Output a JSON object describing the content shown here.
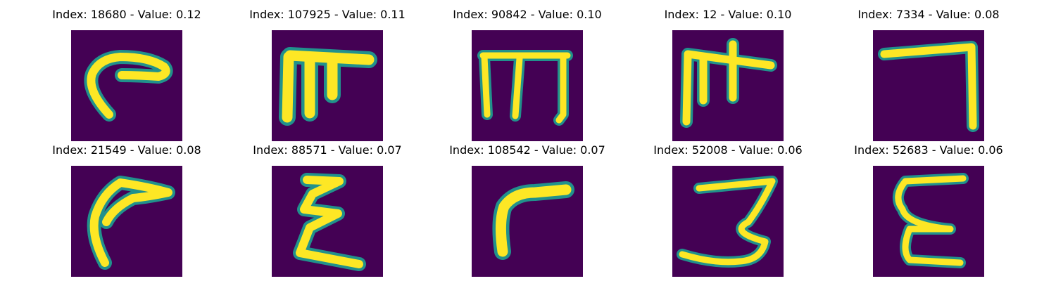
{
  "colormap": {
    "background": "#440154",
    "edge": "#21918c",
    "mid": "#7ad151",
    "core": "#fde725"
  },
  "panels": [
    {
      "title": "Index: 18680 - Value: 0.12",
      "index": 18680,
      "value": 0.12,
      "glyph": "hooked stroke (C-like)"
    },
    {
      "title": "Index: 107925 - Value: 0.11",
      "index": 107925,
      "value": 0.11,
      "glyph": "three-leg bar glyph"
    },
    {
      "title": "Index: 90842 - Value: 0.10",
      "index": 90842,
      "value": 0.1,
      "glyph": "m-shaped glyph"
    },
    {
      "title": "Index: 12 - Value: 0.10",
      "index": 12,
      "value": 0.1,
      "glyph": "cross-topped glyph"
    },
    {
      "title": "Index: 7334 - Value: 0.08",
      "index": 7334,
      "value": 0.08,
      "glyph": "inverted L glyph"
    },
    {
      "title": "Index: 21549 - Value: 0.08",
      "index": 21549,
      "value": 0.08,
      "glyph": "curved hook glyph"
    },
    {
      "title": "Index: 88571 - Value: 0.07",
      "index": 88571,
      "value": 0.07,
      "glyph": "epsilon-like glyph"
    },
    {
      "title": "Index: 108542 - Value: 0.07",
      "index": 108542,
      "value": 0.07,
      "glyph": "flag-like glyph"
    },
    {
      "title": "Index: 52008 - Value: 0.06",
      "index": 52008,
      "value": 0.06,
      "glyph": "digit 3 glyph"
    },
    {
      "title": "Index: 52683 - Value: 0.06",
      "index": 52683,
      "value": 0.06,
      "glyph": "E-like glyph"
    }
  ]
}
